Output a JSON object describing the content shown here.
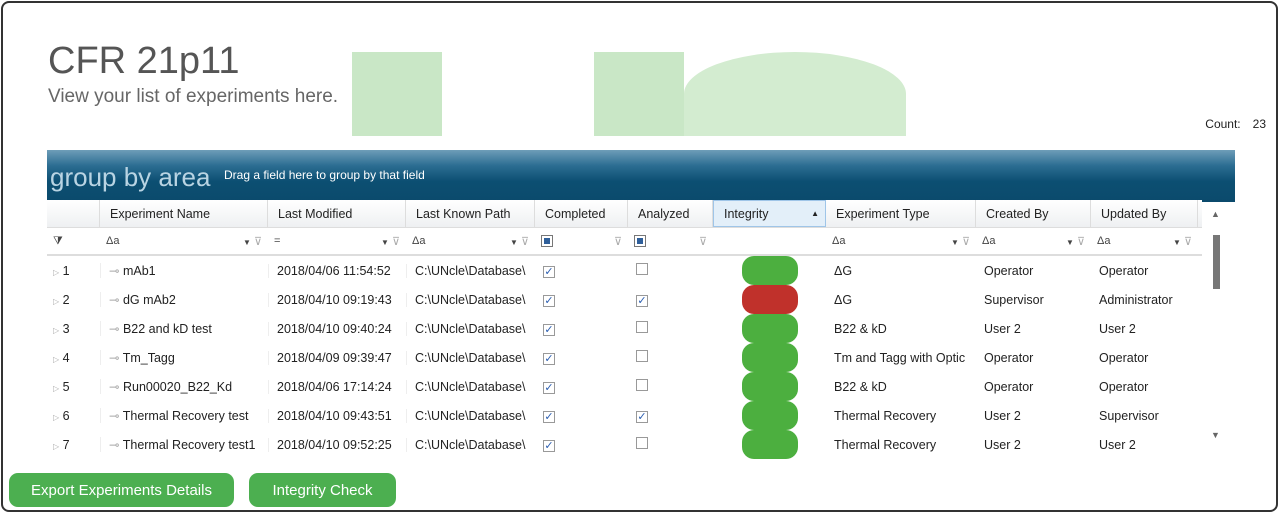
{
  "header": {
    "title": "CFR 21p11",
    "subtitle": "View your list of experiments here.",
    "count_label": "Count:",
    "count": "23"
  },
  "group_area": {
    "label": "group by area",
    "hint": "Drag a field here to group by that field"
  },
  "columns": [
    "Experiment Name",
    "Last Modified",
    "Last Known Path",
    "Completed",
    "Analyzed",
    "Integrity",
    "Experiment Type",
    "Created By",
    "Updated By"
  ],
  "filter_glyph": "Δa",
  "colors": {
    "ok": "#4caf3f",
    "fail": "#c0312b",
    "button": "#4caf50"
  },
  "rows": [
    {
      "n": "1",
      "name": "mAb1",
      "modified": "2018/04/06 11:54:52",
      "path": "C:\\UNcle\\Database\\",
      "completed": true,
      "analyzed": false,
      "integrity": "ok",
      "type": "ΔG",
      "created": "Operator",
      "updated": "Operator"
    },
    {
      "n": "2",
      "name": "dG mAb2",
      "modified": "2018/04/10 09:19:43",
      "path": "C:\\UNcle\\Database\\",
      "completed": true,
      "analyzed": true,
      "integrity": "fail",
      "type": "ΔG",
      "created": "Supervisor",
      "updated": "Administrator"
    },
    {
      "n": "3",
      "name": "B22 and kD test",
      "modified": "2018/04/10 09:40:24",
      "path": "C:\\UNcle\\Database\\",
      "completed": true,
      "analyzed": false,
      "integrity": "ok",
      "type": "B22 & kD",
      "created": "User 2",
      "updated": "User 2"
    },
    {
      "n": "4",
      "name": "Tm_Tagg",
      "modified": "2018/04/09 09:39:47",
      "path": "C:\\UNcle\\Database\\",
      "completed": true,
      "analyzed": false,
      "integrity": "ok",
      "type": "Tm and Tagg with Optic",
      "created": "Operator",
      "updated": "Operator"
    },
    {
      "n": "5",
      "name": "Run00020_B22_Kd",
      "modified": "2018/04/06 17:14:24",
      "path": "C:\\UNcle\\Database\\",
      "completed": true,
      "analyzed": false,
      "integrity": "ok",
      "type": "B22 & kD",
      "created": "Operator",
      "updated": "Operator"
    },
    {
      "n": "6",
      "name": "Thermal Recovery test",
      "modified": "2018/04/10 09:43:51",
      "path": "C:\\UNcle\\Database\\",
      "completed": true,
      "analyzed": true,
      "integrity": "ok",
      "type": "Thermal Recovery",
      "created": "User 2",
      "updated": "Supervisor"
    },
    {
      "n": "7",
      "name": "Thermal Recovery test1",
      "modified": "2018/04/10 09:52:25",
      "path": "C:\\UNcle\\Database\\",
      "completed": true,
      "analyzed": false,
      "integrity": "ok",
      "type": "Thermal Recovery",
      "created": "User 2",
      "updated": "User 2"
    }
  ],
  "buttons": {
    "export": "Export Experiments Details",
    "integrity": "Integrity Check"
  }
}
